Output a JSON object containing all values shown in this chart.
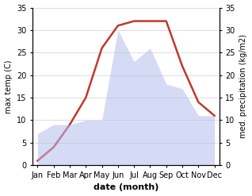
{
  "months": [
    "Jan",
    "Feb",
    "Mar",
    "Apr",
    "May",
    "Jun",
    "Jul",
    "Aug",
    "Sep",
    "Oct",
    "Nov",
    "Dec"
  ],
  "temperature": [
    1,
    4,
    9,
    15,
    26,
    31,
    32,
    32,
    32,
    22,
    14,
    11
  ],
  "precipitation": [
    7,
    9,
    9,
    10,
    10,
    30,
    23,
    26,
    18,
    17,
    11,
    11
  ],
  "temp_color": "#c0392b",
  "precip_fill_color": "#b3bcee",
  "ylim": [
    0,
    35
  ],
  "xlabel": "date (month)",
  "ylabel_left": "max temp (C)",
  "ylabel_right": "med. precipitation (kg/m2)",
  "yticks": [
    0,
    5,
    10,
    15,
    20,
    25,
    30,
    35
  ],
  "fill_alpha": 0.55,
  "temp_linewidth": 1.8
}
